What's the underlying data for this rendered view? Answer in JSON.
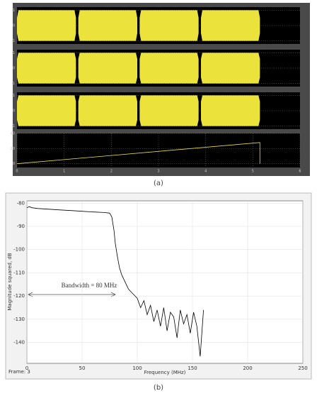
{
  "captions": [
    "(a)",
    "(b)"
  ],
  "chart_data": [
    {
      "type": "area",
      "color": "#ece23c",
      "xlim": [
        0,
        6
      ],
      "ylim": [
        -1.2,
        1.2
      ],
      "yticks": [
        -1,
        0,
        1
      ],
      "grid": true,
      "x": [
        0,
        0.03,
        1.22,
        1.25,
        1.27,
        1.3,
        1.33,
        2.52,
        2.55,
        2.57,
        2.6,
        2.63,
        3.82,
        3.85,
        3.87,
        3.9,
        3.93,
        5.12,
        5.15
      ],
      "values": [
        0.5,
        1,
        1,
        0.5,
        null,
        0.5,
        1,
        1,
        0.5,
        null,
        0.5,
        1,
        1,
        0.5,
        null,
        0.5,
        1,
        1,
        0.5
      ]
    },
    {
      "type": "area",
      "color": "#ece23c",
      "xlim": [
        0,
        6
      ],
      "ylim": [
        -1.2,
        1.2
      ],
      "yticks": [
        -1,
        0,
        1
      ],
      "grid": true,
      "x": [
        0,
        0.03,
        1.22,
        1.25,
        1.27,
        1.3,
        1.33,
        2.52,
        2.55,
        2.57,
        2.6,
        2.63,
        3.82,
        3.85,
        3.87,
        3.9,
        3.93,
        5.12,
        5.15
      ],
      "values": [
        0.6,
        1,
        1,
        0.6,
        null,
        0.6,
        1,
        1,
        0.6,
        null,
        0.6,
        1,
        1,
        0.6,
        null,
        0.6,
        1,
        1,
        0.6
      ]
    },
    {
      "type": "area",
      "color": "#ece23c",
      "xlim": [
        0,
        6
      ],
      "ylim": [
        -1.2,
        1.2
      ],
      "yticks": [
        -1,
        0,
        1
      ],
      "grid": true,
      "x": [
        0,
        0.03,
        1.22,
        1.25,
        1.27,
        1.3,
        1.33,
        2.52,
        2.55,
        2.57,
        2.6,
        2.63,
        3.82,
        3.85,
        3.87,
        3.9,
        3.93,
        5.12,
        5.15
      ],
      "values": [
        0.6,
        1,
        1,
        0.6,
        null,
        0.6,
        1,
        1,
        0.6,
        null,
        0.6,
        1,
        1,
        0.6,
        null,
        0.6,
        1,
        1,
        0.6
      ]
    },
    {
      "type": "line",
      "color": "#ece23c",
      "xlim": [
        0,
        6
      ],
      "ylim": [
        -5,
        40
      ],
      "yticks": [
        0,
        20,
        40
      ],
      "xticks": [
        0,
        1,
        2,
        3,
        4,
        5,
        6
      ],
      "grid": true,
      "x": [
        0,
        5.15,
        5.15
      ],
      "values": [
        0,
        28,
        0
      ]
    },
    {
      "type": "line",
      "color": "#000000",
      "xlabel": "Frequency (MHz)",
      "ylabel": "Magnitude squared, dB",
      "annotation": "Bandwidth = 80 MHz",
      "frame_label": "Frame: 3",
      "grid": true,
      "xlim": [
        0,
        250
      ],
      "ylim": [
        -149,
        -79
      ],
      "xticks": [
        0,
        50,
        100,
        150,
        200,
        250
      ],
      "yticks": [
        -80,
        -90,
        -100,
        -110,
        -120,
        -130,
        -140
      ],
      "x": [
        0,
        2,
        5,
        10,
        20,
        30,
        40,
        50,
        60,
        70,
        75,
        77,
        79,
        80,
        82,
        84,
        86,
        88,
        90,
        92,
        94,
        96,
        98,
        100,
        103,
        106,
        109,
        112,
        115,
        118,
        121,
        124,
        127,
        130,
        133,
        136,
        139,
        142,
        145,
        148,
        151,
        154,
        157,
        160
      ],
      "values": [
        -82,
        -81.5,
        -82,
        -82.3,
        -82.6,
        -82.9,
        -83.2,
        -83.5,
        -83.8,
        -84,
        -84.3,
        -86,
        -92,
        -97,
        -103,
        -108,
        -111,
        -113,
        -115,
        -117,
        -118,
        -119,
        -120,
        -121,
        -125,
        -122,
        -128,
        -124,
        -131,
        -126,
        -133,
        -125,
        -135,
        -127,
        -129,
        -138,
        -126,
        -132,
        -128,
        -136,
        -127,
        -133,
        -146,
        -126
      ]
    }
  ]
}
